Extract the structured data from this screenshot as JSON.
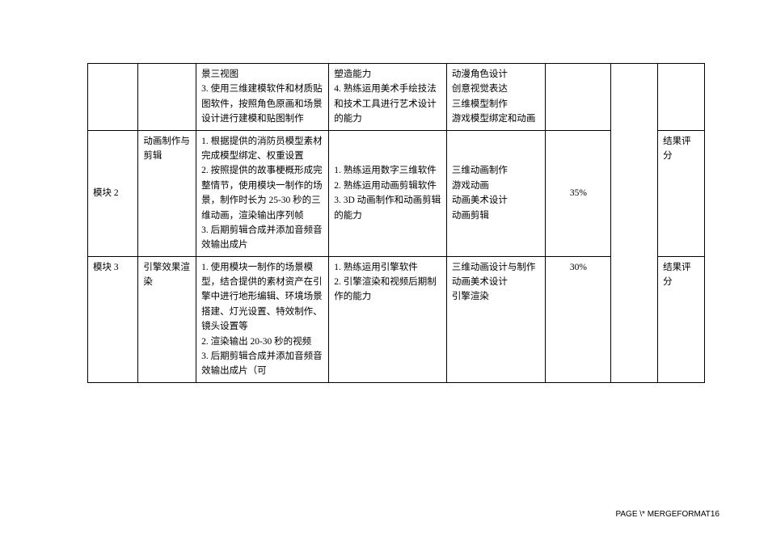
{
  "table": {
    "rows": [
      {
        "col1": "",
        "col2": "",
        "col3": "景三视图\n3. 使用三维建模软件和材质贴图软件，按照角色原画和场景设计进行建模和贴图制作",
        "col4": "塑造能力\n4. 熟练运用美术手绘技法和技术工具进行艺术设计的能力",
        "col5": "动漫角色设计\n创意视觉表达\n三维模型制作\n游戏模型绑定和动画",
        "col6": "",
        "col7": "",
        "col8": ""
      },
      {
        "col1": "模块 2",
        "col2": "动画制作与剪辑",
        "col3": "1. 根据提供的消防员模型素材完成模型绑定、权重设置\n2. 按照提供的故事梗概形成完整情节，使用模块一制作的场景，制作时长为 25-30 秒的三维动画，渲染输出序列帧\n3. 后期剪辑合成并添加音频音效输出成片",
        "col4": "1. 熟练运用数字三维软件\n2. 熟练运用动画剪辑软件\n3. 3D 动画制作和动画剪辑的能力",
        "col5": "三维动画制作\n游戏动画\n动画美术设计\n动画剪辑",
        "col6": "35%",
        "col7": "",
        "col8": "结果评分"
      },
      {
        "col1": "模块 3",
        "col2": "引擎效果渲染",
        "col3": "1. 使用模块一制作的场景模型，结合提供的素材资产在引擎中进行地形编辑、环境场景搭建、灯光设置、特效制作、镜头设置等\n2. 渲染输出 20-30 秒的视频\n3. 后期剪辑合成并添加音频音效输出成片（可",
        "col4": "1. 熟练运用引擎软件\n2. 引擎渲染和视频后期制作的能力",
        "col5": "三维动画设计与制作\n动画美术设计\n引擎渲染",
        "col6": "30%",
        "col7": "",
        "col8": "结果评分"
      }
    ]
  },
  "footer": "PAGE  \\* MERGEFORMAT16"
}
